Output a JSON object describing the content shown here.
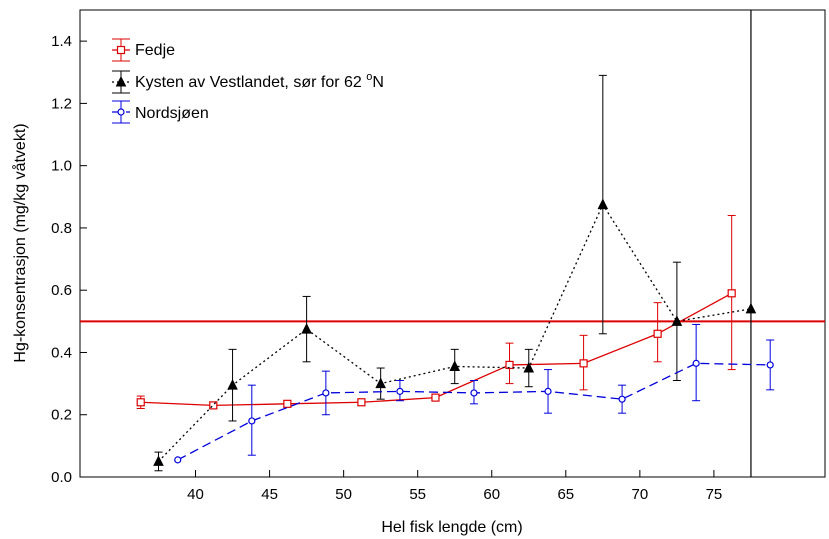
{
  "chart_data": {
    "type": "line",
    "title": "",
    "xlabel": "Hel fisk lengde (cm)",
    "ylabel": "Hg-konsentrasjon (mg/kg våtvekt)",
    "xlim": [
      32.2,
      82.5
    ],
    "ylim": [
      0.0,
      1.5
    ],
    "xticks": [
      "40",
      "45",
      "50",
      "55",
      "60",
      "65",
      "70",
      "75"
    ],
    "yticks": [
      "0.0",
      "0.2",
      "0.4",
      "0.6",
      "0.8",
      "1.0",
      "1.2",
      "1.4"
    ],
    "grid": false,
    "legend_position": "top-left",
    "reference_line": {
      "y": 0.5,
      "color": "#dd0000"
    },
    "vertical_line": {
      "x": 77.5,
      "color": "#000000"
    },
    "series": [
      {
        "name": "Fedje",
        "color": "#dd0000",
        "line_style": "solid",
        "marker": "square",
        "points": [
          {
            "x": 36.3,
            "y": 0.24,
            "lo": 0.22,
            "hi": 0.26
          },
          {
            "x": 41.2,
            "y": 0.23,
            "lo": 0.22,
            "hi": 0.24
          },
          {
            "x": 46.2,
            "y": 0.235,
            "lo": 0.225,
            "hi": 0.245
          },
          {
            "x": 51.2,
            "y": 0.24,
            "lo": 0.23,
            "hi": 0.25
          },
          {
            "x": 56.2,
            "y": 0.255,
            "lo": 0.245,
            "hi": 0.265
          },
          {
            "x": 61.2,
            "y": 0.36,
            "lo": 0.3,
            "hi": 0.43
          },
          {
            "x": 66.2,
            "y": 0.365,
            "lo": 0.28,
            "hi": 0.455
          },
          {
            "x": 71.2,
            "y": 0.46,
            "lo": 0.37,
            "hi": 0.56
          },
          {
            "x": 76.2,
            "y": 0.59,
            "lo": 0.345,
            "hi": 0.84
          }
        ]
      },
      {
        "name": "Kysten av Vestlandet, sør for 62 ",
        "name_superscript": "o",
        "name_suffix": "N",
        "color": "#000000",
        "line_style": "dotted",
        "marker": "triangle",
        "points": [
          {
            "x": 37.5,
            "y": 0.05,
            "lo": 0.02,
            "hi": 0.08
          },
          {
            "x": 42.5,
            "y": 0.295,
            "lo": 0.18,
            "hi": 0.41
          },
          {
            "x": 47.5,
            "y": 0.475,
            "lo": 0.37,
            "hi": 0.58
          },
          {
            "x": 52.5,
            "y": 0.3,
            "lo": 0.25,
            "hi": 0.35
          },
          {
            "x": 57.5,
            "y": 0.355,
            "lo": 0.3,
            "hi": 0.41
          },
          {
            "x": 62.5,
            "y": 0.35,
            "lo": 0.29,
            "hi": 0.41
          },
          {
            "x": 67.5,
            "y": 0.875,
            "lo": 0.46,
            "hi": 1.29
          },
          {
            "x": 72.5,
            "y": 0.5,
            "lo": 0.31,
            "hi": 0.69
          },
          {
            "x": 77.5,
            "y": 0.54,
            "lo": null,
            "hi": null
          }
        ]
      },
      {
        "name": "Nordsjøen",
        "color": "#0000dd",
        "line_style": "dashed",
        "marker": "circle",
        "points": [
          {
            "x": 38.8,
            "y": 0.055,
            "lo": null,
            "hi": null
          },
          {
            "x": 43.8,
            "y": 0.18,
            "lo": 0.07,
            "hi": 0.295
          },
          {
            "x": 48.8,
            "y": 0.27,
            "lo": 0.2,
            "hi": 0.34
          },
          {
            "x": 53.8,
            "y": 0.275,
            "lo": 0.245,
            "hi": 0.31
          },
          {
            "x": 58.8,
            "y": 0.27,
            "lo": 0.235,
            "hi": 0.31
          },
          {
            "x": 63.8,
            "y": 0.275,
            "lo": 0.205,
            "hi": 0.345
          },
          {
            "x": 68.8,
            "y": 0.25,
            "lo": 0.205,
            "hi": 0.295
          },
          {
            "x": 73.8,
            "y": 0.365,
            "lo": 0.245,
            "hi": 0.49
          },
          {
            "x": 78.8,
            "y": 0.36,
            "lo": 0.28,
            "hi": 0.44
          }
        ]
      }
    ]
  }
}
